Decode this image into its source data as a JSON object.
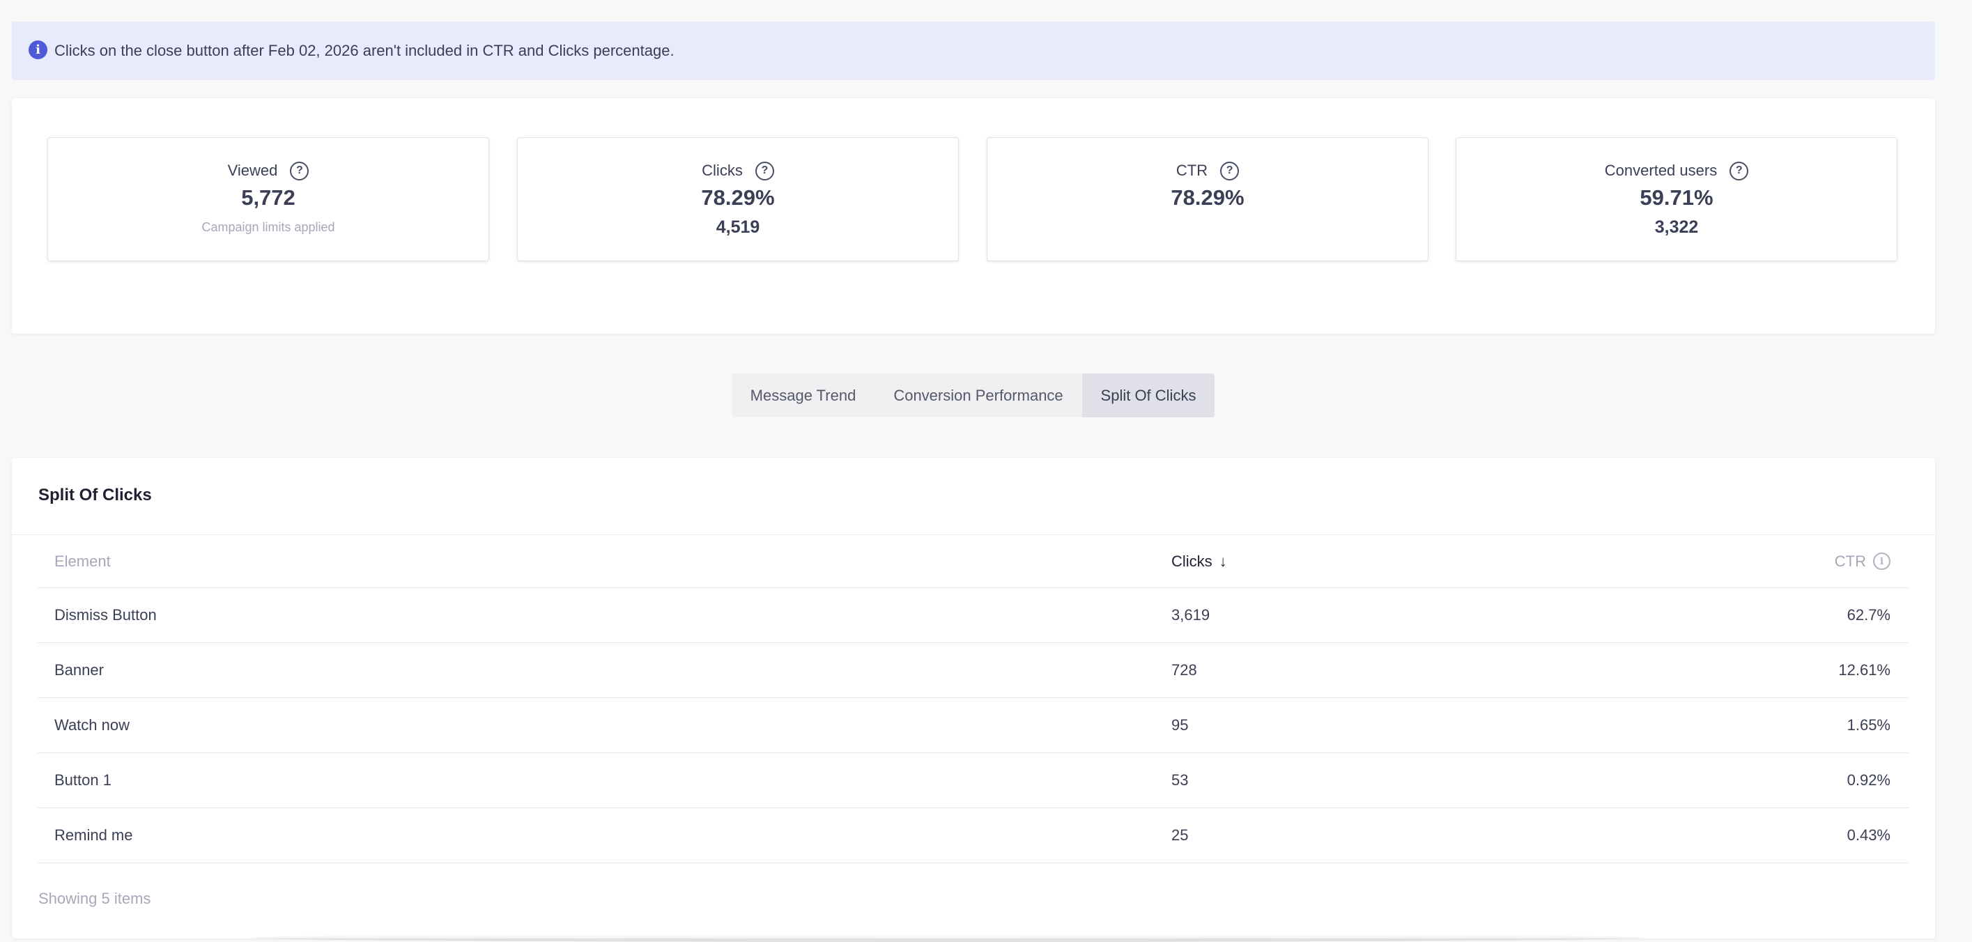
{
  "info_banner": {
    "icon": "info-icon",
    "text": "Clicks on the close button after Feb 02, 2026 aren't included in CTR and Clicks percentage."
  },
  "stats": [
    {
      "label": "Viewed",
      "value": "5,772",
      "note": "Campaign limits applied"
    },
    {
      "label": "Clicks",
      "value": "78.29%",
      "sub": "4,519"
    },
    {
      "label": "CTR",
      "value": "78.29%"
    },
    {
      "label": "Converted users",
      "value": "59.71%",
      "sub": "3,322"
    }
  ],
  "tabs": [
    {
      "label": "Message Trend"
    },
    {
      "label": "Conversion Performance"
    },
    {
      "label": "Split Of Clicks",
      "selected": true
    }
  ],
  "split_table": {
    "title": "Split Of Clicks",
    "columns": {
      "element": "Element",
      "clicks": "Clicks",
      "clicks_sort": "↓",
      "ctr": "CTR"
    },
    "rows": [
      {
        "element": "Dismiss Button",
        "clicks": "3,619",
        "ctr": "62.7%"
      },
      {
        "element": "Banner",
        "clicks": "728",
        "ctr": "12.61%"
      },
      {
        "element": "Watch now",
        "clicks": "95",
        "ctr": "1.65%"
      },
      {
        "element": "Button 1",
        "clicks": "53",
        "ctr": "0.92%"
      },
      {
        "element": "Remind me",
        "clicks": "25",
        "ctr": "0.43%"
      }
    ],
    "footer": "Showing 5 items"
  },
  "colors": {
    "banner_bg": "#e8ebfc",
    "info_icon": "#4f5ad9",
    "text_primary": "#3b3f55",
    "text_muted": "#a5a8b8",
    "tab_selected_bg": "#e0e0e8"
  }
}
